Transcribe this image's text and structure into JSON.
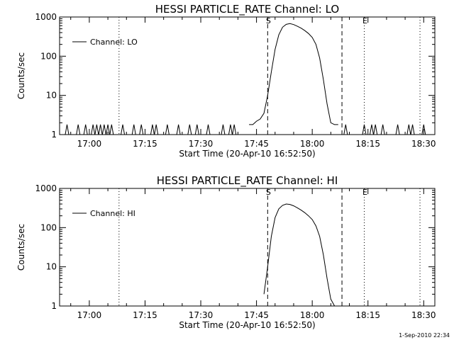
{
  "footer_stamp": "1-Sep-2010 22:34",
  "chart_data": [
    {
      "type": "line",
      "title": "HESSI PARTICLE_RATE Channel: LO",
      "xlabel": "Start Time (20-Apr-10 16:52:50)",
      "ylabel": "Counts/sec",
      "y_scale": "log",
      "ylim": [
        1,
        1000
      ],
      "xlim": [
        "16:52",
        "18:33"
      ],
      "x_ticks": [
        "17:00",
        "17:15",
        "17:30",
        "17:45",
        "18:00",
        "18:15",
        "18:30"
      ],
      "y_ticks": [
        "1",
        "10",
        "100",
        "1000"
      ],
      "legend": {
        "position": "top-left",
        "entries": [
          "Channel: LO"
        ]
      },
      "markers": [
        {
          "time": "17:08",
          "style": "dotted",
          "label": ""
        },
        {
          "time": "17:48",
          "style": "dashed",
          "label": "S"
        },
        {
          "time": "18:08",
          "style": "dashed",
          "label": ""
        },
        {
          "time": "18:14",
          "style": "dotted",
          "label": "E"
        },
        {
          "time": "18:29",
          "style": "dotted",
          "label": ""
        }
      ],
      "series": [
        {
          "name": "Channel: LO",
          "x": [
            "17:43",
            "17:44",
            "17:45",
            "17:46",
            "17:47",
            "17:48",
            "17:49",
            "17:50",
            "17:51",
            "17:52",
            "17:53",
            "17:54",
            "17:55",
            "17:56",
            "17:57",
            "17:58",
            "17:59",
            "18:00",
            "18:01",
            "18:02",
            "18:03",
            "18:04",
            "18:05",
            "18:06",
            "18:07"
          ],
          "values": [
            1.8,
            1.8,
            2.2,
            2.5,
            3.5,
            10,
            40,
            150,
            350,
            550,
            650,
            680,
            640,
            580,
            520,
            450,
            380,
            300,
            200,
            90,
            25,
            6,
            2,
            1.8,
            1.8
          ],
          "baseline_spikes": [
            "16:54",
            "16:57",
            "16:59",
            "17:01",
            "17:02",
            "17:03",
            "17:04",
            "17:05",
            "17:06",
            "17:09",
            "17:12",
            "17:14",
            "17:17",
            "17:18",
            "17:21",
            "17:24",
            "17:27",
            "17:29",
            "17:32",
            "17:36",
            "17:38",
            "17:39",
            "18:09",
            "18:14",
            "18:16",
            "18:17",
            "18:19",
            "18:23",
            "18:26",
            "18:27",
            "18:30"
          ],
          "spike_peak": 1.8
        }
      ]
    },
    {
      "type": "line",
      "title": "HESSI PARTICLE_RATE Channel: HI",
      "xlabel": "Start Time (20-Apr-10 16:52:50)",
      "ylabel": "Counts/sec",
      "y_scale": "log",
      "ylim": [
        1,
        1000
      ],
      "xlim": [
        "16:52",
        "18:33"
      ],
      "x_ticks": [
        "17:00",
        "17:15",
        "17:30",
        "17:45",
        "18:00",
        "18:15",
        "18:30"
      ],
      "y_ticks": [
        "1",
        "10",
        "100",
        "1000"
      ],
      "legend": {
        "position": "top-left",
        "entries": [
          "Channel: HI"
        ]
      },
      "markers": [
        {
          "time": "17:08",
          "style": "dotted",
          "label": ""
        },
        {
          "time": "17:48",
          "style": "dashed",
          "label": "S"
        },
        {
          "time": "18:08",
          "style": "dashed",
          "label": ""
        },
        {
          "time": "18:14",
          "style": "dotted",
          "label": "E"
        },
        {
          "time": "18:29",
          "style": "dotted",
          "label": ""
        }
      ],
      "series": [
        {
          "name": "Channel: HI",
          "x": [
            "17:47",
            "17:48",
            "17:49",
            "17:50",
            "17:51",
            "17:52",
            "17:53",
            "17:54",
            "17:55",
            "17:56",
            "17:57",
            "17:58",
            "17:59",
            "18:00",
            "18:01",
            "18:02",
            "18:03",
            "18:04",
            "18:05",
            "18:06"
          ],
          "values": [
            2,
            10,
            60,
            180,
            300,
            370,
            400,
            390,
            360,
            320,
            280,
            240,
            200,
            160,
            110,
            60,
            20,
            5,
            1.5,
            1
          ],
          "baseline_spikes": [],
          "spike_peak": 1.8
        }
      ]
    }
  ]
}
